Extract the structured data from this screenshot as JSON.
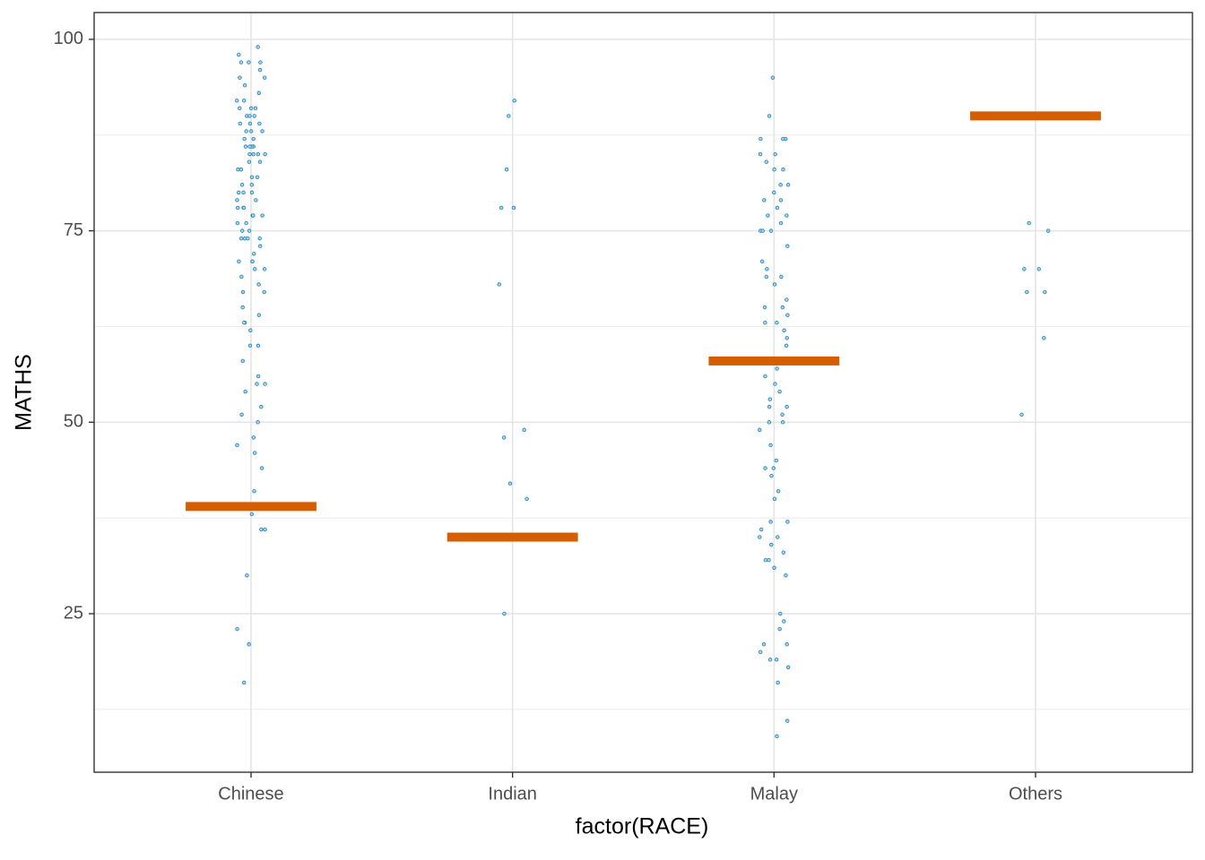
{
  "chart_data": {
    "type": "strip",
    "x_label": "factor(RACE)",
    "y_label": "MATHS",
    "categories": [
      "Chinese",
      "Indian",
      "Malay",
      "Others"
    ],
    "points": [
      [
        99,
        98,
        97,
        97,
        97,
        96,
        95,
        95,
        94,
        93,
        92,
        92,
        91,
        91,
        91,
        90,
        90,
        90,
        89,
        89,
        89,
        88,
        88,
        88,
        87,
        87,
        86,
        86,
        86,
        86,
        85,
        85,
        85,
        85,
        84,
        84,
        83,
        83,
        82,
        82,
        81,
        81,
        80,
        80,
        80,
        79,
        79,
        78,
        78,
        78,
        77,
        77,
        77,
        76,
        76,
        75,
        75,
        74,
        74,
        74,
        74,
        73,
        72,
        71,
        71,
        71,
        70,
        70,
        69,
        68,
        67,
        67,
        65,
        64,
        63,
        63,
        62,
        60,
        60,
        58,
        56,
        55,
        55,
        54,
        52,
        51,
        50,
        48,
        47,
        46,
        44,
        41,
        38,
        36,
        36,
        30,
        23,
        21,
        16
      ],
      [
        92,
        90,
        83,
        78,
        78,
        68,
        49,
        48,
        42,
        40,
        25
      ],
      [
        95,
        90,
        87,
        87,
        87,
        85,
        85,
        84,
        83,
        83,
        81,
        81,
        80,
        79,
        79,
        78,
        77,
        77,
        76,
        75,
        75,
        75,
        73,
        71,
        70,
        69,
        69,
        68,
        66,
        65,
        65,
        64,
        63,
        63,
        62,
        61,
        60,
        57,
        56,
        55,
        54,
        53,
        52,
        52,
        51,
        50,
        50,
        49,
        47,
        45,
        44,
        44,
        43,
        41,
        40,
        37,
        37,
        36,
        35,
        35,
        34,
        33,
        32,
        32,
        31,
        30,
        25,
        24,
        23,
        21,
        21,
        20,
        19,
        19,
        18,
        16,
        11,
        9
      ],
      [
        76,
        75,
        70,
        70,
        67,
        67,
        61,
        51
      ]
    ],
    "point_color": "#1f7fb4",
    "crossbar": {
      "values": [
        39,
        35,
        58,
        90
      ],
      "color": "#d55e00"
    },
    "ylim": [
      4.3,
      103.5
    ],
    "yticks": [
      25,
      50,
      75,
      100
    ],
    "y_minor_ticks": [
      12.5,
      37.5,
      62.5,
      87.5
    ],
    "grid": true
  }
}
